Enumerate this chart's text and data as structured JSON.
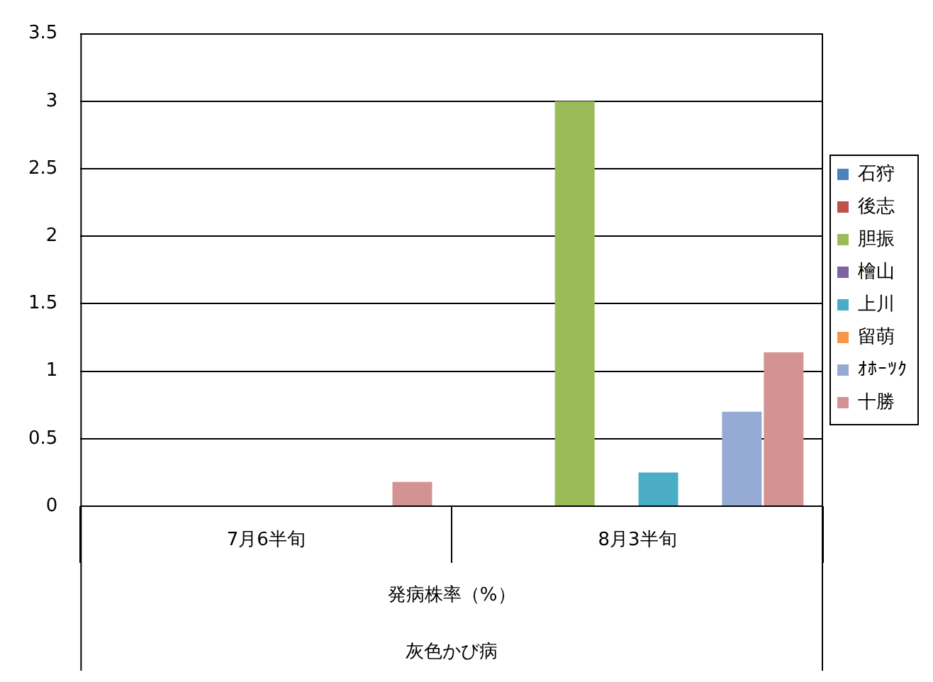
{
  "chart_data": {
    "type": "bar",
    "categories": [
      "7月6半旬",
      "8月3半旬"
    ],
    "series": [
      {
        "name": "石狩",
        "color": "#4f81bd",
        "values": [
          0,
          0
        ]
      },
      {
        "name": "後志",
        "color": "#c0504d",
        "values": [
          0,
          0
        ]
      },
      {
        "name": "胆振",
        "color": "#9bbb59",
        "values": [
          0,
          3.0
        ]
      },
      {
        "name": "檜山",
        "color": "#8064a2",
        "values": [
          0,
          0
        ]
      },
      {
        "name": "上川",
        "color": "#4bacc6",
        "values": [
          0,
          0.25
        ]
      },
      {
        "name": "留萌",
        "color": "#f79646",
        "values": [
          0,
          0
        ]
      },
      {
        "name": "ｵﾎｰﾂｸ",
        "color": "#95abd3",
        "values": [
          0,
          0.7
        ]
      },
      {
        "name": "十勝",
        "color": "#d39392",
        "values": [
          0.18,
          1.14
        ]
      }
    ],
    "xlabel": "発病株率（%）",
    "annotations": [
      "灰色かび病"
    ],
    "ylim": [
      0,
      3.5
    ],
    "yticks": [
      0,
      0.5,
      1,
      1.5,
      2,
      2.5,
      3,
      3.5
    ],
    "grid": "y",
    "legend": "right"
  }
}
